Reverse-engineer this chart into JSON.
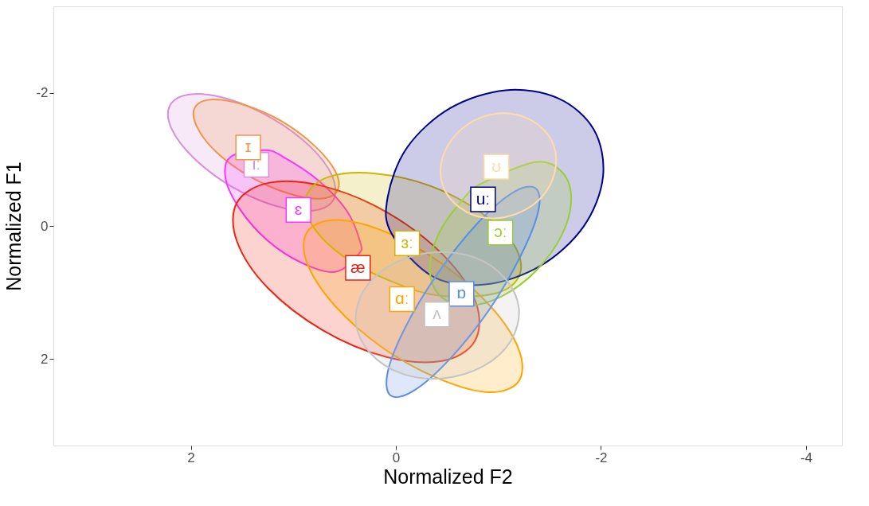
{
  "chart_data": {
    "type": "area",
    "xlabel": "Normalized F2",
    "ylabel": "Normalized F1",
    "xlim": [
      3.34,
      -4.35
    ],
    "ylim": [
      3.3,
      -3.3
    ],
    "xticks": [
      2,
      0,
      -2,
      -4
    ],
    "yticks": [
      -2,
      0,
      2
    ],
    "grid": false,
    "series": [
      {
        "color": "#d98fd9",
        "x": [
          0.61,
          0.81,
          1.17,
          1.6,
          1.97,
          2.19,
          2.2,
          2.0,
          1.64,
          1.21,
          0.84,
          0.62
        ],
        "values": [
          -0.39,
          -0.23,
          -0.3,
          -0.59,
          -1.02,
          -1.47,
          -1.82,
          -1.98,
          -1.91,
          -1.62,
          -1.2,
          -0.75
        ]
      },
      {
        "color": "#f0954a",
        "x": [
          0.57,
          0.74,
          1.05,
          1.42,
          1.75,
          1.94,
          1.96,
          1.79,
          1.48,
          1.11,
          0.79,
          0.59
        ],
        "values": [
          -0.53,
          -0.41,
          -0.49,
          -0.74,
          -1.11,
          -1.49,
          -1.78,
          -1.9,
          -1.82,
          -1.57,
          -1.2,
          -0.82
        ]
      },
      {
        "color": "#ff33ff",
        "x": [
          0.36,
          0.59,
          0.91,
          1.25,
          1.52,
          1.66,
          1.61,
          1.28,
          1.1,
          0.76,
          0.48,
          0.35
        ],
        "values": [
          0.42,
          0.69,
          0.56,
          0.22,
          -0.25,
          -0.71,
          -1.04,
          -1.14,
          -1.04,
          -0.69,
          -0.23,
          0.23
        ]
      },
      {
        "color": "#ee2211",
        "x": [
          -0.77,
          -0.45,
          0.09,
          0.71,
          1.25,
          1.55,
          1.55,
          1.23,
          0.69,
          0.07,
          -0.47,
          -0.78
        ],
        "values": [
          1.73,
          2.03,
          1.97,
          1.57,
          0.93,
          0.23,
          -0.35,
          -0.65,
          -0.59,
          -0.19,
          0.45,
          1.15
        ]
      },
      {
        "color": "#cdb500",
        "x": [
          -1.21,
          -0.98,
          -0.44,
          0.0,
          0.5,
          0.82,
          0.87,
          0.65,
          0.21,
          -0.34,
          -0.83,
          -1.15
        ],
        "values": [
          0.72,
          1.01,
          1.05,
          0.86,
          0.47,
          -0.02,
          -0.46,
          -0.74,
          -0.79,
          -0.6,
          -0.2,
          0.28
        ]
      },
      {
        "color": "#ffa500",
        "x": [
          -1.2,
          -0.92,
          -0.44,
          0.12,
          0.6,
          0.87,
          0.86,
          0.58,
          0.1,
          -0.45,
          -0.93,
          -1.2
        ],
        "values": [
          2.33,
          2.5,
          2.31,
          1.84,
          1.19,
          0.54,
          0.08,
          -0.09,
          0.09,
          0.57,
          1.22,
          1.86
        ]
      },
      {
        "color": "#00008b",
        "x": [
          -1.93,
          -2.02,
          -1.83,
          -1.41,
          -0.87,
          -0.36,
          0.04,
          0.08,
          -0.11,
          -0.53,
          -1.07,
          -1.58
        ],
        "values": [
          -1.45,
          -0.74,
          0.01,
          0.6,
          0.88,
          0.76,
          0.12,
          -0.43,
          -1.18,
          -1.77,
          -2.04,
          -1.92
        ]
      },
      {
        "color": "#9acd32",
        "x": [
          -1.62,
          -1.71,
          -1.62,
          -1.37,
          -1.03,
          -0.69,
          -0.43,
          -0.33,
          -0.42,
          -0.67,
          -0.84,
          -1.36
        ],
        "values": [
          -0.81,
          -0.41,
          0.13,
          0.67,
          1.06,
          1.2,
          1.05,
          0.65,
          0.11,
          -0.43,
          -0.64,
          -0.96
        ]
      },
      {
        "color": "#5a8de8",
        "x": [
          -1.36,
          -1.39,
          -1.22,
          -0.91,
          -0.52,
          -0.17,
          0.05,
          0.08,
          -0.09,
          -0.41,
          -0.79,
          -1.14
        ],
        "values": [
          -0.57,
          -0.23,
          0.44,
          1.26,
          2.01,
          2.48,
          2.55,
          2.2,
          1.53,
          0.71,
          -0.03,
          -0.5
        ]
      },
      {
        "color": "#ffdca8",
        "x": [
          -1.54,
          -1.55,
          -1.42,
          -1.17,
          -0.88,
          -0.62,
          -0.46,
          -0.45,
          -0.59,
          -0.83,
          -1.12,
          -1.38
        ],
        "values": [
          -1.21,
          -0.81,
          -0.43,
          -0.18,
          -0.12,
          -0.28,
          -0.6,
          -1.0,
          -1.38,
          -1.63,
          -1.69,
          -1.53
        ]
      },
      {
        "color": "#c4c4c4",
        "x": [
          -1.2,
          -1.12,
          -0.85,
          -0.46,
          -0.06,
          0.25,
          0.39,
          0.31,
          0.04,
          -0.35,
          -0.76,
          -1.06
        ],
        "values": [
          1.24,
          1.73,
          2.11,
          2.29,
          2.22,
          1.91,
          1.45,
          0.96,
          0.58,
          0.4,
          0.47,
          0.78
        ]
      }
    ],
    "annotations": [
      {
        "text": "iː",
        "x": 1.36,
        "y": -0.92
      },
      {
        "text": "ɪ",
        "x": 1.44,
        "y": -1.18
      },
      {
        "text": "ɛ",
        "x": 0.95,
        "y": -0.24
      },
      {
        "text": "æ",
        "x": 0.37,
        "y": 0.63
      },
      {
        "text": "ɜː",
        "x": -0.11,
        "y": 0.26
      },
      {
        "text": "ɑː",
        "x": -0.06,
        "y": 1.1
      },
      {
        "text": "uː",
        "x": -0.85,
        "y": -0.4
      },
      {
        "text": "ɔː",
        "x": -1.02,
        "y": 0.1
      },
      {
        "text": "ɒ",
        "x": -0.64,
        "y": 1.02
      },
      {
        "text": "ʊ",
        "x": -0.98,
        "y": -0.89
      },
      {
        "text": "ʌ",
        "x": -0.4,
        "y": 1.33
      }
    ]
  }
}
